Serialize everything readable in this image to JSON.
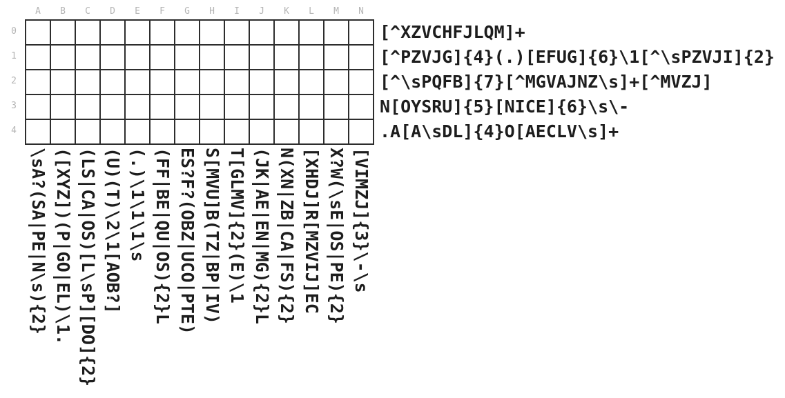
{
  "puzzle": {
    "type": "regex-crossword",
    "grid": {
      "rows": 5,
      "cols": 14
    },
    "colors": {
      "background": "#ffffff",
      "grid_line": "#2d2d2d",
      "label_gray": "#b4b4b4",
      "clue_text": "#1d1d1d"
    },
    "columns": [
      {
        "letter": "A",
        "clue": "\\sA?(SA|PE|N\\s){2}"
      },
      {
        "letter": "B",
        "clue": "([XYZ])(P|GO|EL)\\1."
      },
      {
        "letter": "C",
        "clue": "(LS|CA|OS)[L\\sP][DO]{2}"
      },
      {
        "letter": "D",
        "clue": "(U)(T)\\2\\1[AOB?]"
      },
      {
        "letter": "E",
        "clue": "(.)\\1\\1\\1\\s"
      },
      {
        "letter": "F",
        "clue": "(FF|BE|QU|OS){2}L"
      },
      {
        "letter": "G",
        "clue": "ES?F?(OBZ|UCO|PTE)"
      },
      {
        "letter": "H",
        "clue": "S[MVU]B(TZ|BP|IV)"
      },
      {
        "letter": "I",
        "clue": "T[GLMV]{2}(E)\\1"
      },
      {
        "letter": "J",
        "clue": "(JK|AE|EN|MG){2}L"
      },
      {
        "letter": "K",
        "clue": "N(XN|ZB|CA|FS){2}"
      },
      {
        "letter": "L",
        "clue": "[XHDJ]R[MZVIJ]EC"
      },
      {
        "letter": "M",
        "clue": "X?W(\\sE|OS|PE){2}"
      },
      {
        "letter": "N",
        "clue": "[VIMZJ]{3}\\-\\s"
      }
    ],
    "rows": [
      {
        "number": "0",
        "clue": "[^XZVCHFJLQM]+"
      },
      {
        "number": "1",
        "clue": "[^PZVJG]{4}(.)[EFUG]{6}\\1[^\\sPZVJI]{2}"
      },
      {
        "number": "2",
        "clue": "[^\\sPQFB]{7}[^MGVAJNZ\\s]+[^MVZJ]"
      },
      {
        "number": "3",
        "clue": "N[OYSRU]{5}[NICE]{6}\\s\\-"
      },
      {
        "number": "4",
        "clue": ".A[A\\sDL]{4}O[AECLV\\s]+"
      }
    ]
  }
}
